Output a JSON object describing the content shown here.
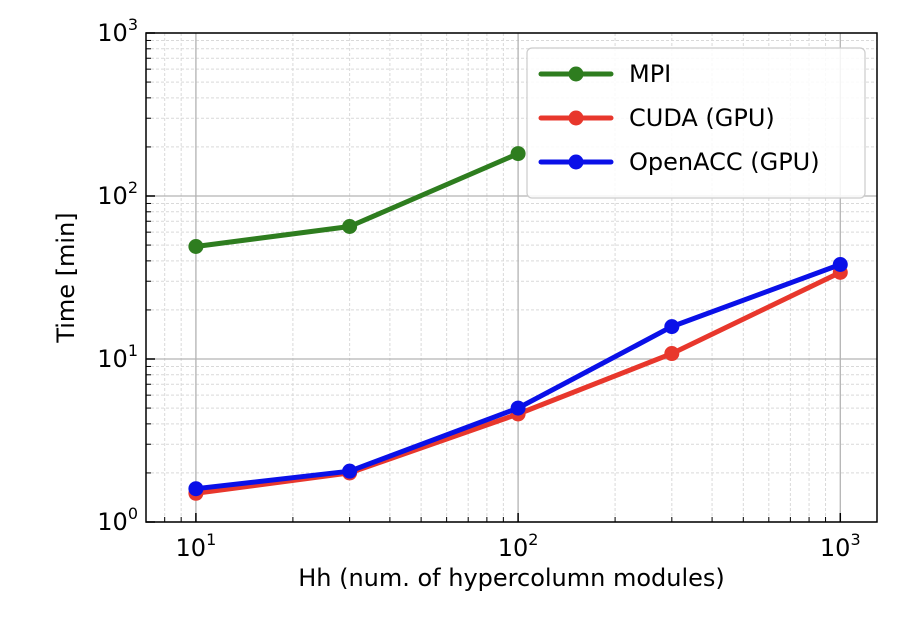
{
  "chart_data": {
    "type": "line",
    "xscale": "log",
    "yscale": "log",
    "xlim": [
      7,
      1300
    ],
    "ylim": [
      1,
      1000
    ],
    "grid": true,
    "legend_position": "top-right",
    "xlabel": "Hh (num. of hypercolumn modules)",
    "ylabel": "Time [min]",
    "x_ticks": [
      {
        "value": 10,
        "base": "10",
        "exp": "1"
      },
      {
        "value": 100,
        "base": "10",
        "exp": "2"
      },
      {
        "value": 1000,
        "base": "10",
        "exp": "3"
      }
    ],
    "y_ticks": [
      {
        "value": 1,
        "base": "10",
        "exp": "0"
      },
      {
        "value": 10,
        "base": "10",
        "exp": "1"
      },
      {
        "value": 100,
        "base": "10",
        "exp": "2"
      },
      {
        "value": 1000,
        "base": "10",
        "exp": "3"
      }
    ],
    "series": [
      {
        "name": "MPI",
        "color": "#2e7d1f",
        "x": [
          10,
          30,
          100
        ],
        "y": [
          49,
          65,
          182
        ]
      },
      {
        "name": "CUDA (GPU)",
        "color": "#e8372c",
        "x": [
          10,
          30,
          100,
          300,
          1000
        ],
        "y": [
          1.5,
          2.0,
          4.6,
          10.8,
          34
        ]
      },
      {
        "name": "OpenACC (GPU)",
        "color": "#0a10e8",
        "x": [
          10,
          30,
          100,
          300,
          1000
        ],
        "y": [
          1.6,
          2.05,
          5.0,
          15.8,
          38
        ]
      }
    ]
  }
}
